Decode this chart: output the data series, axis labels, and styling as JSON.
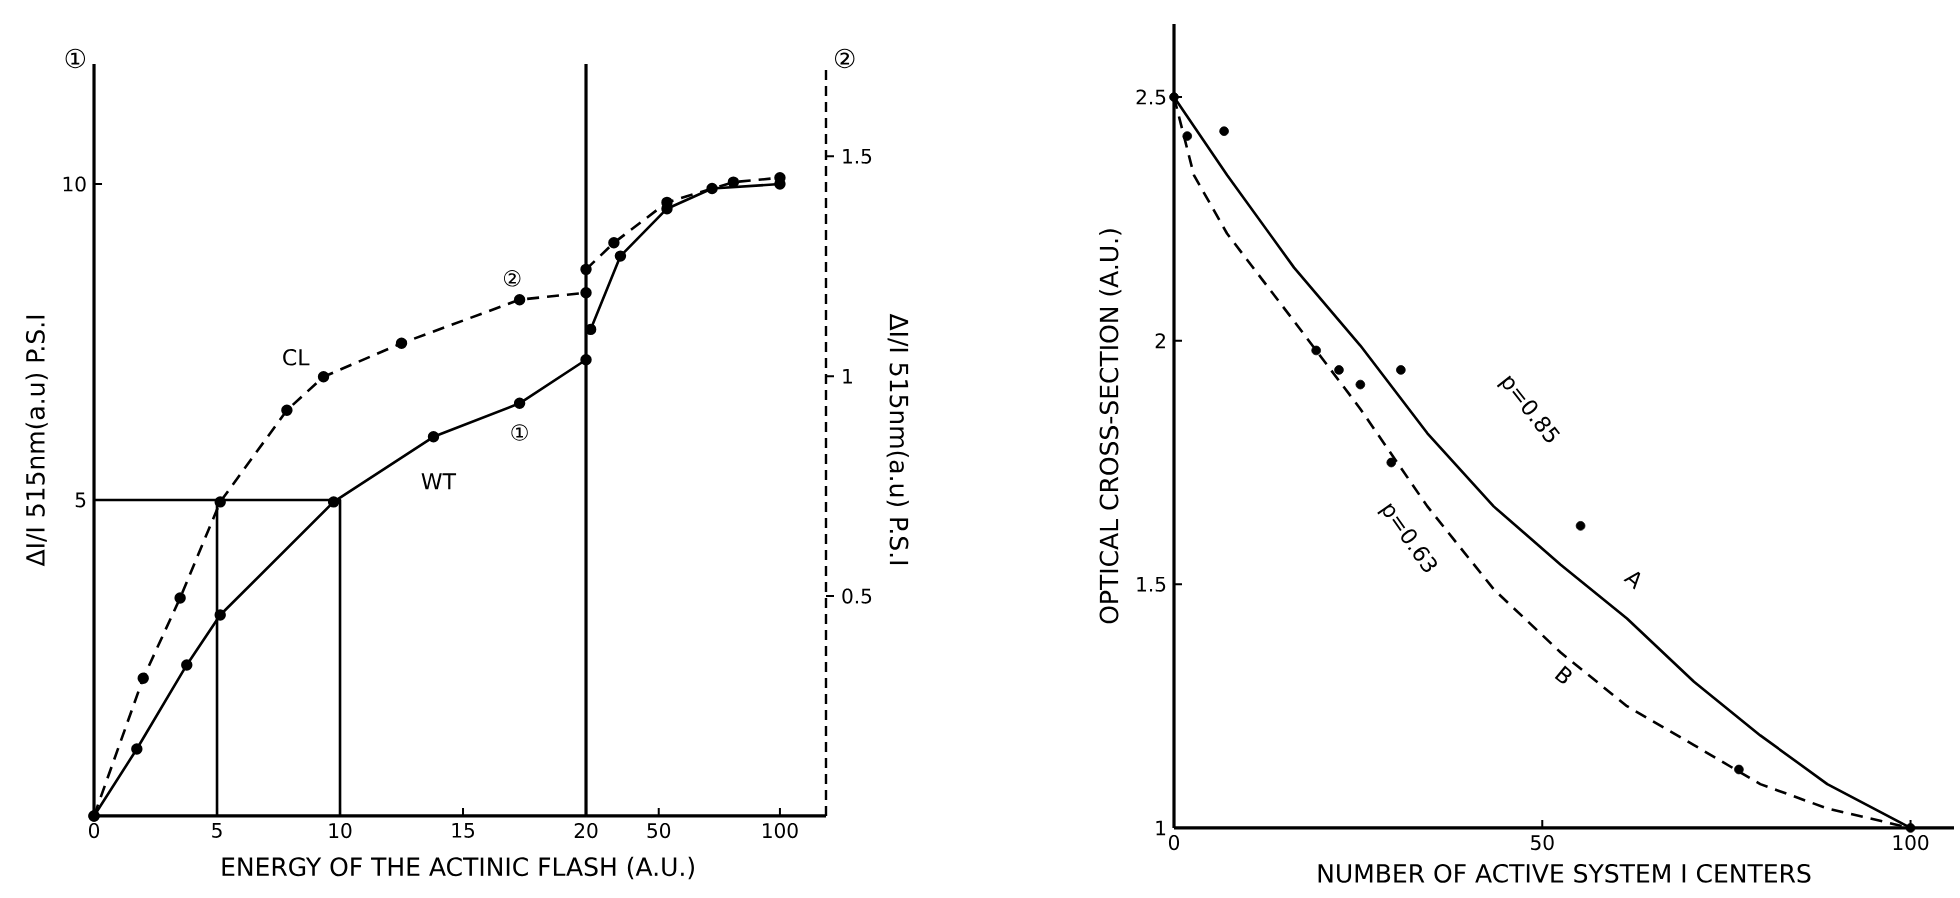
{
  "chart_data": [
    {
      "type": "line",
      "xlabel": "ENERGY OF THE ACTINIC FLASH (A.U.)",
      "ylabel": "ΔI/I 515nm(a.u) P.S.I",
      "xlim": [
        0,
        20
      ],
      "xticks": [
        0,
        5,
        10,
        15,
        20
      ],
      "ylim": [
        0,
        11.9
      ],
      "yticks": [
        5,
        10
      ],
      "series": [
        {
          "color": "#000000",
          "marker": "circle",
          "line_style": "solid",
          "x": [
            0,
            1.74,
            3.77,
            5.13,
            9.74,
            13.8,
            17.3,
            20
          ],
          "values": [
            0,
            1.06,
            2.39,
            3.18,
            4.97,
            6.0,
            6.53,
            7.22
          ]
        },
        {
          "color": "#000000",
          "marker": "circle",
          "line_style": "dashed",
          "x": [
            0,
            2.0,
            3.5,
            5.13,
            7.84,
            9.33,
            12.5,
            17.3,
            20
          ],
          "values": [
            0,
            2.18,
            3.45,
            4.97,
            6.42,
            6.95,
            7.48,
            8.17,
            8.28
          ]
        },
        {
          "color": "#000000",
          "marker": "none",
          "line_style": "solid",
          "x": [
            0,
            10,
            10
          ],
          "values": [
            5,
            5,
            0
          ]
        },
        {
          "color": "#000000",
          "marker": "none",
          "line_style": "solid",
          "x": [
            5,
            5
          ],
          "values": [
            5,
            0
          ]
        }
      ],
      "annotations": [
        "①",
        "CL",
        "WT",
        "①",
        "②"
      ]
    },
    {
      "type": "line",
      "y2label": "ΔI/I 515nm(a.u) P.S.I",
      "xlim": [
        20,
        119
      ],
      "xticks": [
        50,
        100
      ],
      "ylim": [
        0,
        11.9
      ],
      "y2lim": [
        0,
        1.71
      ],
      "y2ticks": [
        0.5,
        1,
        1.5
      ],
      "series": [
        {
          "color": "#000000",
          "marker": "circle",
          "line_style": "solid",
          "x": [
            21.9,
            34.2,
            53.4,
            72,
            100
          ],
          "values": [
            7.7,
            8.86,
            9.61,
            9.93,
            10.0
          ]
        },
        {
          "color": "#000000",
          "marker": "circle",
          "line_style": "dashed",
          "x": [
            20,
            31.5,
            53.4,
            80.8,
            100
          ],
          "values": [
            8.65,
            9.07,
            9.71,
            10.03,
            10.1
          ]
        }
      ],
      "annotations": [
        "②"
      ]
    },
    {
      "type": "scatter",
      "xlabel": "NUMBER OF ACTIVE SYSTEM I CENTERS",
      "ylabel": "OPTICAL CROSS-SECTION (A.U.)",
      "xlim": [
        0,
        105.9
      ],
      "xticks": [
        0,
        50,
        100
      ],
      "ylim": [
        1,
        2.65
      ],
      "yticks": [
        1,
        1.5,
        2,
        2.5
      ],
      "series": [
        {
          "color": "#000000",
          "marker": "circle",
          "x": [
            0,
            1.8,
            6.8,
            19.3,
            22.4,
            25.3,
            30.8,
            29.5,
            55.2,
            76.7,
            100
          ],
          "values": [
            2.5,
            2.42,
            2.43,
            1.98,
            1.94,
            1.91,
            1.94,
            1.75,
            1.62,
            1.12,
            1.0
          ]
        },
        {
          "type": "line",
          "color": "#000000",
          "marker": "none",
          "line_style": "solid",
          "x": [
            0,
            7.2,
            16.3,
            25.3,
            34.4,
            43.4,
            52.5,
            61.5,
            70.6,
            79.6,
            88.7,
            100
          ],
          "values": [
            2.5,
            2.34,
            2.15,
            1.99,
            1.81,
            1.66,
            1.54,
            1.43,
            1.3,
            1.19,
            1.09,
            1.0
          ]
        },
        {
          "type": "line",
          "color": "#000000",
          "marker": "none",
          "line_style": "dashed",
          "x": [
            0,
            2.7,
            7.2,
            16.3,
            25.3,
            34.4,
            43.4,
            52.5,
            61.5,
            70.6,
            79.6,
            88.7,
            100
          ],
          "values": [
            2.5,
            2.34,
            2.22,
            2.04,
            1.86,
            1.66,
            1.49,
            1.36,
            1.25,
            1.17,
            1.09,
            1.04,
            1.0
          ]
        }
      ],
      "annotations": [
        "p=0.85",
        "p=0.63",
        "A",
        "B"
      ]
    }
  ]
}
